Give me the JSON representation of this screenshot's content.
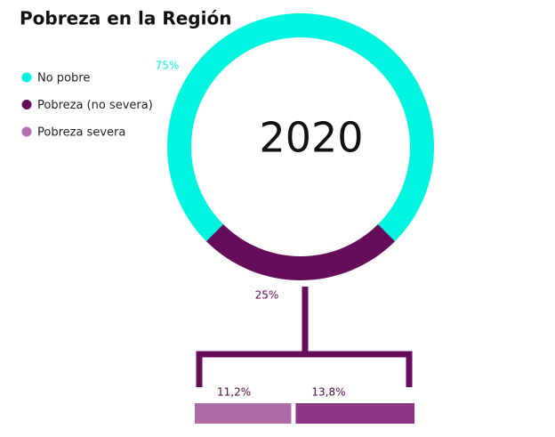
{
  "chart_data": {
    "type": "pie",
    "title": "Pobreza en la Región",
    "center_label": "2020",
    "legend": [
      {
        "name": "No pobre",
        "color": "#00f5e0"
      },
      {
        "name": "Pobreza (no severa)",
        "color": "#650d5a"
      },
      {
        "name": "Pobreza severa",
        "color": "#b06fae"
      }
    ],
    "values": [
      75,
      25
    ],
    "value_labels": [
      "75%",
      "25%"
    ],
    "colors": [
      "#00f5e0",
      "#650d5a"
    ],
    "breakdown": {
      "values": [
        11.2,
        13.8
      ],
      "value_labels": [
        "11,2%",
        "13,8%"
      ],
      "colors": [
        "#ad6aa6",
        "#8b3585"
      ]
    }
  }
}
